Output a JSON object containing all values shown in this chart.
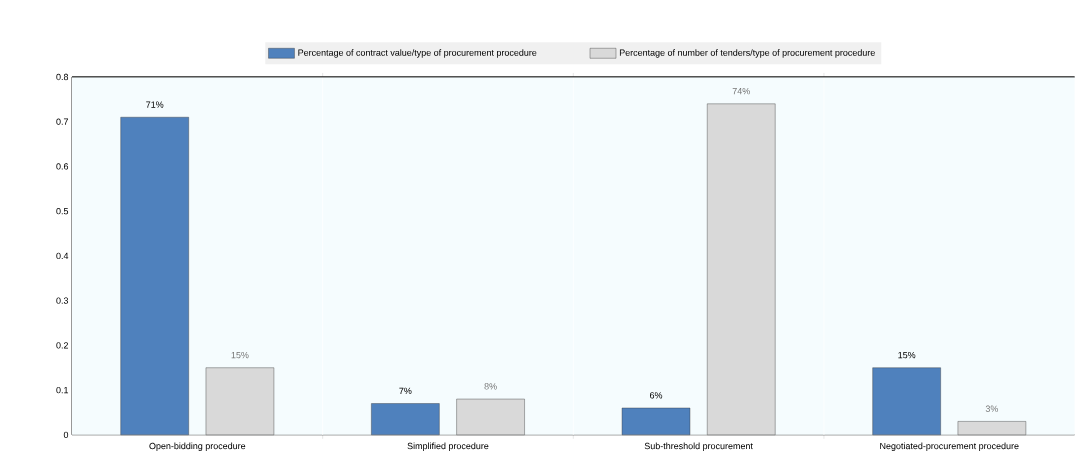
{
  "chart_data": {
    "type": "bar",
    "categories": [
      "Open-bidding procedure",
      "Simplified procedure",
      "Sub-threshold procurement",
      "Negotiated-procurement procedure"
    ],
    "series": [
      {
        "name": "Percentage of contract value/type of procurement procedure",
        "color": "#4f81bd",
        "values": [
          0.71,
          0.07,
          0.06,
          0.15
        ],
        "value_labels": [
          "71%",
          "7%",
          "6%",
          "15%"
        ]
      },
      {
        "name": "Percentage of number of tenders/type of procurement procedure",
        "color": "#d9d9d9",
        "values": [
          0.15,
          0.08,
          0.74,
          0.03
        ],
        "value_labels": [
          "15%",
          "8%",
          "74%",
          "3%"
        ]
      }
    ],
    "ylim": [
      0,
      0.8
    ],
    "yticks": [
      0,
      0.1,
      0.2,
      0.3,
      0.4,
      0.5,
      0.6,
      0.7,
      0.8
    ],
    "grid": false,
    "legend": "top"
  }
}
